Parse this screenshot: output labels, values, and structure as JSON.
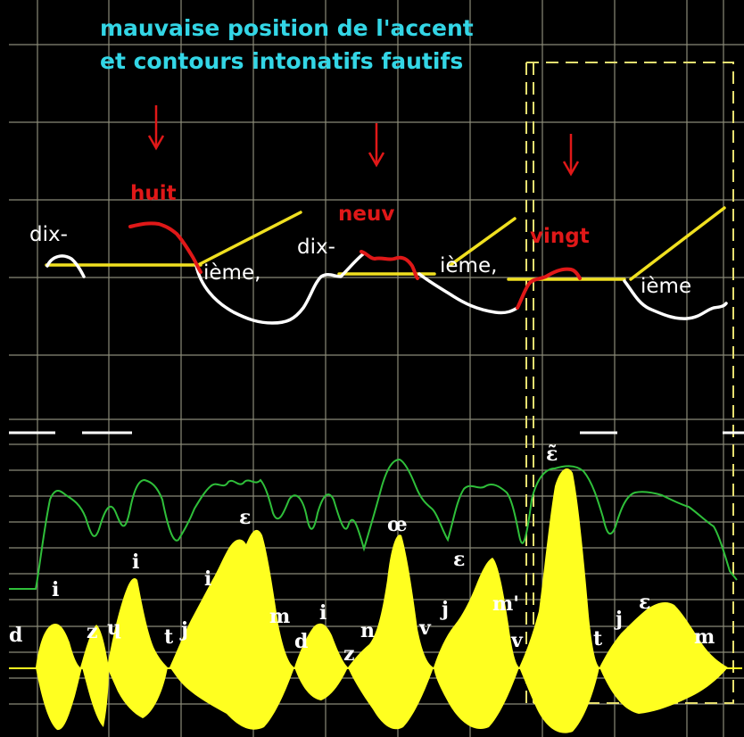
{
  "caption": {
    "line1": "mauvaise position  de l'accent",
    "line2": "et  contours  intonatifs fautifs"
  },
  "words": {
    "dix1": "dix-",
    "huit": "huit",
    "ieme1": "ième,",
    "dix2": "dix-",
    "neuv": "neuv",
    "ieme2": "ième,",
    "vingt": "vingt",
    "ieme3": "ième"
  },
  "phonetic": {
    "d1": "d",
    "i1": "i",
    "z1": "z",
    "ue1": "ɥ",
    "i2": "i",
    "t1": "t",
    "j1": "j",
    "i3": "i",
    "e1": "ɛ",
    "m1": "m",
    "d2": "d",
    "i4": "i",
    "z2": "z",
    "n1": "n",
    "oe": "œ",
    "v1": "v",
    "j2": "j",
    "e2": "ɛ",
    "m2": "m'",
    "v2": "v",
    "nasal_e": "ɛ̃",
    "t2": "t",
    "j3": "j",
    "e3": "ɛ",
    "m3": "m"
  },
  "colors": {
    "background": "#000000",
    "grid": "#8a8a78",
    "caption": "#33d6e6",
    "model_contour": "#f0e020",
    "learner_contour": "#ffffff",
    "stress_contour": "#e01818",
    "intensity": "#2fbf3a",
    "waveform": "#ffff20",
    "arrow": "#e01818"
  }
}
